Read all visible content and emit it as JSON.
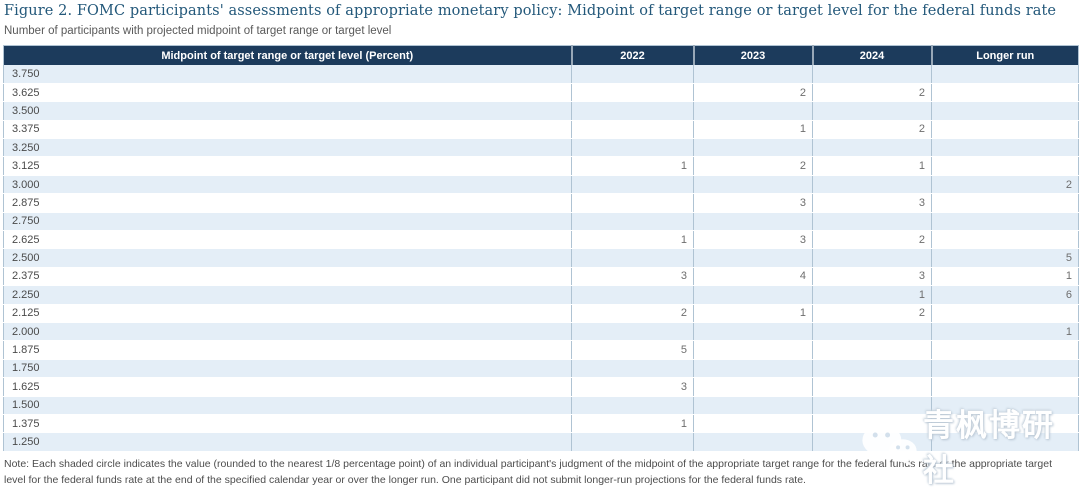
{
  "figure": {
    "title": "Figure 2. FOMC participants' assessments of appropriate monetary policy: Midpoint of target range or target level for the federal funds rate",
    "subtitle": "Number of participants with projected midpoint of target range or target level",
    "note": "Note: Each shaded circle indicates the value (rounded to the nearest 1/8 percentage point) of an individual participant's judgment of the midpoint of the appropriate target range for the federal funds rate or the appropriate target level for the federal funds rate at the end of the specified calendar year or over the longer run. One participant did not submit longer-run projections for the federal funds rate."
  },
  "watermark": {
    "icon": "wechat-icon",
    "text": "青枫博研社"
  },
  "colors": {
    "header_bg": "#1C3B5C",
    "header_text": "#FFFFFF",
    "shaded_row": "#E4EEF7",
    "plain_row": "#FFFFFF",
    "grid_line": "#AFC3D3",
    "title_text": "#23587A",
    "note_text": "#4D4D4D",
    "value_text": "#6E6E6E"
  },
  "chart_data": {
    "type": "table",
    "title": "Figure 2. FOMC participants' assessments of appropriate monetary policy: Midpoint of target range or target level for the federal funds rate",
    "subtitle": "Number of participants with projected midpoint of target range or target level",
    "columns": [
      "Midpoint of target range or target level (Percent)",
      "2022",
      "2023",
      "2024",
      "Longer run"
    ],
    "rows": [
      {
        "rate": "3.750",
        "values": [
          null,
          null,
          null,
          null
        ]
      },
      {
        "rate": "3.625",
        "values": [
          null,
          2,
          2,
          null
        ]
      },
      {
        "rate": "3.500",
        "values": [
          null,
          null,
          null,
          null
        ]
      },
      {
        "rate": "3.375",
        "values": [
          null,
          1,
          2,
          null
        ]
      },
      {
        "rate": "3.250",
        "values": [
          null,
          null,
          null,
          null
        ]
      },
      {
        "rate": "3.125",
        "values": [
          1,
          2,
          1,
          null
        ]
      },
      {
        "rate": "3.000",
        "values": [
          null,
          null,
          null,
          2
        ]
      },
      {
        "rate": "2.875",
        "values": [
          null,
          3,
          3,
          null
        ]
      },
      {
        "rate": "2.750",
        "values": [
          null,
          null,
          null,
          null
        ]
      },
      {
        "rate": "2.625",
        "values": [
          1,
          3,
          2,
          null
        ]
      },
      {
        "rate": "2.500",
        "values": [
          null,
          null,
          null,
          5
        ]
      },
      {
        "rate": "2.375",
        "values": [
          3,
          4,
          3,
          1
        ]
      },
      {
        "rate": "2.250",
        "values": [
          null,
          null,
          1,
          6
        ]
      },
      {
        "rate": "2.125",
        "values": [
          2,
          1,
          2,
          null
        ]
      },
      {
        "rate": "2.000",
        "values": [
          null,
          null,
          null,
          1
        ]
      },
      {
        "rate": "1.875",
        "values": [
          5,
          null,
          null,
          null
        ]
      },
      {
        "rate": "1.750",
        "values": [
          null,
          null,
          null,
          null
        ]
      },
      {
        "rate": "1.625",
        "values": [
          3,
          null,
          null,
          null
        ]
      },
      {
        "rate": "1.500",
        "values": [
          null,
          null,
          null,
          null
        ]
      },
      {
        "rate": "1.375",
        "values": [
          1,
          null,
          null,
          null
        ]
      },
      {
        "rate": "1.250",
        "values": [
          null,
          null,
          null,
          null
        ]
      }
    ]
  }
}
